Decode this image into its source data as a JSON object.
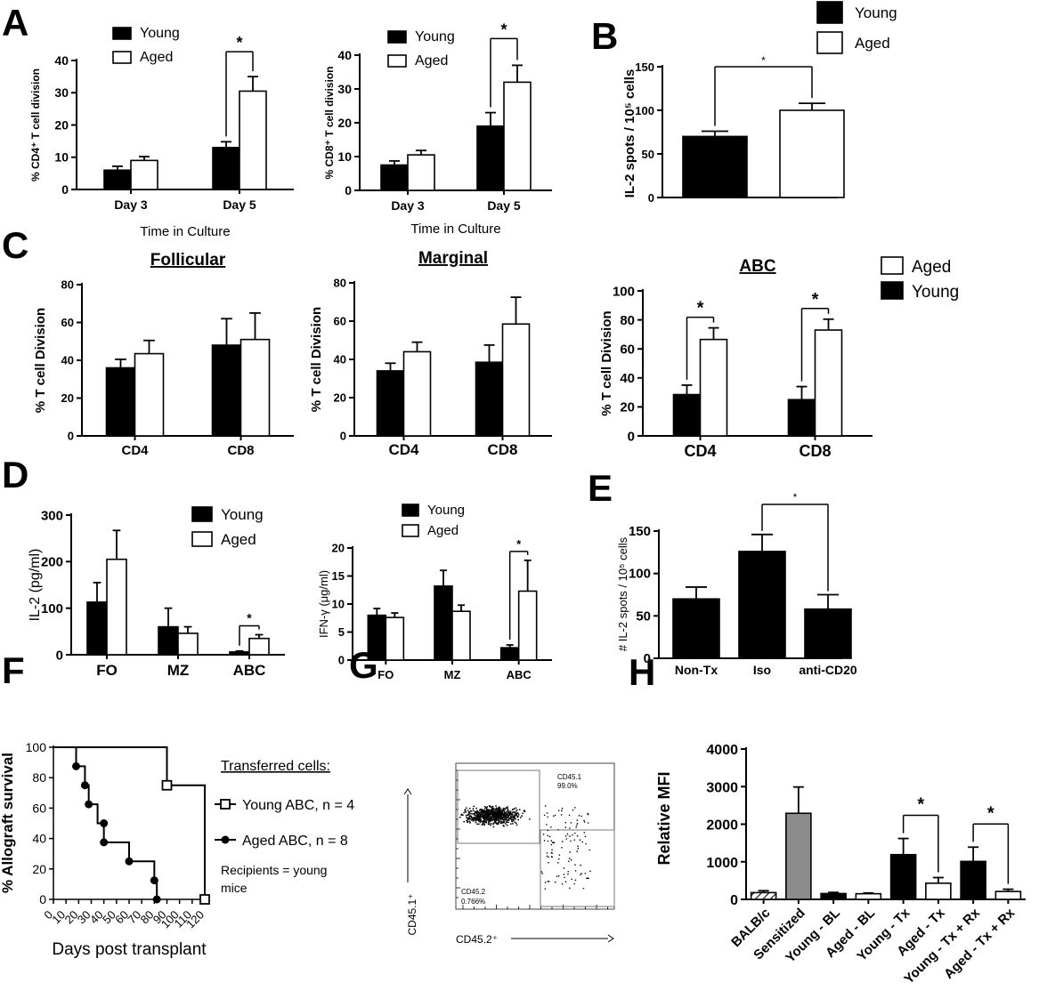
{
  "panel_letters": [
    "A",
    "B",
    "C",
    "D",
    "E",
    "F",
    "G",
    "H"
  ],
  "chart_data": [
    {
      "id": "A1",
      "type": "bar",
      "categories": [
        "Day 3",
        "Day 5"
      ],
      "series": [
        {
          "name": "Young",
          "values": [
            6,
            13
          ],
          "errors": [
            1.2,
            1.8
          ]
        },
        {
          "name": "Aged",
          "values": [
            9,
            30.5
          ],
          "errors": [
            1.2,
            4.5
          ]
        }
      ],
      "legend": [
        "Young",
        "Aged"
      ],
      "ylabel": "% CD4⁺ T cell division",
      "xlabel": "Time in Culture",
      "ylim": [
        0,
        40
      ],
      "yticks": [
        "0",
        "10",
        "20",
        "30",
        "40"
      ],
      "sig": [
        {
          "group": 1,
          "label": "*"
        }
      ]
    },
    {
      "id": "A2",
      "type": "bar",
      "categories": [
        "Day 3",
        "Day 5"
      ],
      "series": [
        {
          "name": "Young",
          "values": [
            7.5,
            19
          ],
          "errors": [
            1.2,
            4
          ]
        },
        {
          "name": "Aged",
          "values": [
            10.5,
            32
          ],
          "errors": [
            1.3,
            5
          ]
        }
      ],
      "legend": [
        "Young",
        "Aged"
      ],
      "ylabel": "% CD8⁺ T cell division",
      "xlabel": "Time in Culture",
      "ylim": [
        0,
        40
      ],
      "yticks": [
        "0",
        "10",
        "20",
        "30",
        "40"
      ],
      "sig": [
        {
          "group": 1,
          "label": "*"
        }
      ]
    },
    {
      "id": "B",
      "type": "bar",
      "categories": [
        "Young",
        "Aged"
      ],
      "series": [
        {
          "name": "",
          "values": [
            70,
            100
          ],
          "errors": [
            6,
            8
          ]
        }
      ],
      "legend": [
        "Young",
        "Aged"
      ],
      "ylabel": "IL-2 spots / 10⁵ cells",
      "ylim": [
        0,
        150
      ],
      "yticks": [
        "0",
        "50",
        "100",
        "150"
      ],
      "sig_label": "*"
    },
    {
      "id": "C1",
      "type": "bar",
      "title": "Follicular",
      "categories": [
        "CD4",
        "CD8"
      ],
      "series": [
        {
          "name": "Young",
          "values": [
            36,
            48
          ],
          "errors": [
            4.5,
            14
          ]
        },
        {
          "name": "Aged",
          "values": [
            43.5,
            51
          ],
          "errors": [
            7,
            14
          ]
        }
      ],
      "ylabel": "% T cell Division",
      "ylim": [
        0,
        80
      ],
      "yticks": [
        "0",
        "20",
        "40",
        "60",
        "80"
      ]
    },
    {
      "id": "C2",
      "type": "bar",
      "title": "Marginal",
      "categories": [
        "CD4",
        "CD8"
      ],
      "series": [
        {
          "name": "Young",
          "values": [
            34,
            38.5
          ],
          "errors": [
            4,
            9
          ]
        },
        {
          "name": "Aged",
          "values": [
            44,
            58.5
          ],
          "errors": [
            5,
            14
          ]
        }
      ],
      "ylabel": "% T cell Division",
      "ylim": [
        0,
        80
      ],
      "yticks": [
        "0",
        "20",
        "40",
        "60",
        "80"
      ]
    },
    {
      "id": "C3",
      "type": "bar",
      "title": "ABC",
      "categories": [
        "CD4",
        "CD8"
      ],
      "series": [
        {
          "name": "Young",
          "values": [
            28.5,
            25
          ],
          "errors": [
            6.5,
            9
          ]
        },
        {
          "name": "Aged",
          "values": [
            66.5,
            73
          ],
          "errors": [
            8,
            7.5
          ]
        }
      ],
      "legend": [
        "Aged",
        "Young"
      ],
      "ylabel": "% T cell Division",
      "ylim": [
        0,
        100
      ],
      "yticks": [
        "0",
        "20",
        "40",
        "60",
        "80",
        "100"
      ],
      "sig": [
        {
          "group": 0,
          "label": "*"
        },
        {
          "group": 1,
          "label": "*"
        }
      ]
    },
    {
      "id": "D1",
      "type": "bar",
      "categories": [
        "FO",
        "MZ",
        "ABC"
      ],
      "series": [
        {
          "name": "Young",
          "values": [
            113,
            60,
            6
          ],
          "errors": [
            42,
            40,
            2
          ]
        },
        {
          "name": "Aged",
          "values": [
            205,
            46,
            35
          ],
          "errors": [
            62,
            14,
            8
          ]
        }
      ],
      "legend": [
        "Young",
        "Aged"
      ],
      "ylabel": "IL-2 (pg/ml)",
      "ylim": [
        0,
        300
      ],
      "yticks": [
        "0",
        "100",
        "200",
        "300"
      ],
      "sig": [
        {
          "group": 2,
          "label": "*"
        }
      ]
    },
    {
      "id": "D2",
      "type": "bar",
      "categories": [
        "FO",
        "MZ",
        "ABC"
      ],
      "series": [
        {
          "name": "Young",
          "values": [
            8,
            13.2,
            2.2
          ],
          "errors": [
            1.2,
            2.8,
            0.5
          ]
        },
        {
          "name": "Aged",
          "values": [
            7.6,
            8.7,
            12.3
          ],
          "errors": [
            0.8,
            1.1,
            5.5
          ]
        }
      ],
      "legend": [
        "Young",
        "Aged"
      ],
      "ylabel": "IFN-γ (μg/ml)",
      "ylim": [
        0,
        20
      ],
      "yticks": [
        "0",
        "5",
        "10",
        "15",
        "20"
      ],
      "sig": [
        {
          "group": 2,
          "label": "*"
        }
      ]
    },
    {
      "id": "E",
      "type": "bar",
      "categories": [
        "Non-Tx",
        "Iso",
        "anti-CD20"
      ],
      "series": [
        {
          "name": "",
          "values": [
            70,
            126,
            58
          ],
          "errors": [
            14,
            20,
            17
          ]
        }
      ],
      "ylabel": "# IL-2 spots / 10⁵ cells",
      "ylim": [
        0,
        150
      ],
      "yticks": [
        "0",
        "50",
        "100",
        "150"
      ],
      "sig_label": "*"
    },
    {
      "id": "F",
      "type": "line",
      "series": [
        {
          "name": "Young ABC, n = 4",
          "x": [
            0,
            90,
            90,
            120,
            120
          ],
          "y": [
            100,
            100,
            75,
            75,
            0
          ],
          "markers": [
            [
              90,
              75
            ],
            [
              120,
              0
            ]
          ]
        },
        {
          "name": "Aged ABC, n = 8",
          "x": [
            0,
            18,
            18,
            25,
            25,
            28,
            28,
            35,
            35,
            40,
            40,
            60,
            60,
            80,
            80,
            82,
            82
          ],
          "y": [
            100,
            100,
            87.5,
            87.5,
            75,
            75,
            62.5,
            62.5,
            50,
            50,
            37.5,
            37.5,
            25,
            25,
            12.5,
            12.5,
            0
          ],
          "markers": [
            [
              18,
              87.5
            ],
            [
              25,
              75
            ],
            [
              28,
              62.5
            ],
            [
              40,
              50
            ],
            [
              40,
              37.5
            ],
            [
              60,
              25
            ],
            [
              80,
              12.5
            ],
            [
              82,
              0
            ]
          ]
        }
      ],
      "ylabel": "% Allograft survival",
      "xlabel": "Days post transplant",
      "xlim": [
        0,
        120
      ],
      "ylim": [
        0,
        100
      ],
      "xticks": [
        "0",
        "10",
        "20",
        "30",
        "40",
        "50",
        "60",
        "70",
        "80",
        "90",
        "100",
        "110",
        "120"
      ],
      "yticks": [
        "0",
        "20",
        "40",
        "60",
        "80",
        "100"
      ],
      "legend_title": "Transferred cells:",
      "note": "Recipients = young mice"
    },
    {
      "id": "G",
      "type": "scatter",
      "xlabel": "CD45.2⁺",
      "ylabel": "CD45.1⁺",
      "gates": [
        {
          "name": "CD45.1",
          "percent": "99.0%"
        },
        {
          "name": "CD45.2",
          "percent": "0.766%"
        }
      ]
    },
    {
      "id": "H",
      "type": "bar",
      "categories": [
        "BALB/c",
        "Sensitized",
        "Young - BL",
        "Aged - BL",
        "Young - Tx",
        "Aged - Tx",
        "Young - Tx + Rx",
        "Aged - Tx + Rx"
      ],
      "values": [
        180,
        2290,
        155,
        150,
        1190,
        430,
        1010,
        210
      ],
      "errors": [
        50,
        700,
        30,
        20,
        430,
        150,
        380,
        60
      ],
      "fills": [
        "hatch",
        "gray",
        "black",
        "white",
        "black",
        "white",
        "black",
        "white"
      ],
      "ylabel": "Relative MFI",
      "ylim": [
        0,
        4000
      ],
      "yticks": [
        "0",
        "1000",
        "2000",
        "3000",
        "4000"
      ],
      "sig": [
        {
          "pair": [
            4,
            5
          ],
          "label": "*"
        },
        {
          "pair": [
            6,
            7
          ],
          "label": "*"
        }
      ]
    }
  ]
}
